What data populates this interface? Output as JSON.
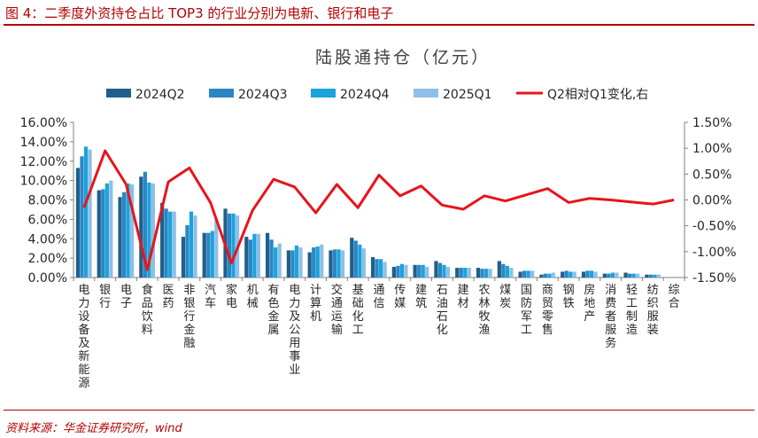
{
  "figure_title": "图 4：二季度外资持仓占比 TOP3 的行业分别为电新、银行和电子",
  "source": "资料来源：华金证券研究所，wind",
  "chart_data": {
    "type": "bar",
    "title": "陆股通持仓（亿元）",
    "categories": [
      "电力设备及新能源",
      "银行",
      "电子",
      "食品饮料",
      "医药",
      "非银行金融",
      "汽车",
      "家电",
      "机械",
      "有色金属",
      "电力及公用事业",
      "计算机",
      "交通运输",
      "基础化工",
      "通信",
      "传媒",
      "建筑",
      "石油石化",
      "建材",
      "农林牧渔",
      "煤炭",
      "国防军工",
      "商贸零售",
      "钢铁",
      "房地产",
      "消费者服务",
      "轻工制造",
      "纺织服装",
      "综合"
    ],
    "series": [
      {
        "name": "2024Q2",
        "color": "#1f5f8b",
        "values": [
          11.3,
          9.0,
          8.3,
          10.4,
          7.7,
          4.2,
          4.6,
          7.1,
          4.2,
          4.6,
          2.8,
          2.6,
          2.8,
          4.1,
          2.1,
          1.1,
          1.3,
          1.7,
          1.0,
          1.0,
          1.7,
          0.6,
          0.3,
          0.6,
          0.6,
          0.4,
          0.5,
          0.3,
          0.0
        ]
      },
      {
        "name": "2024Q3",
        "color": "#2b86c4",
        "values": [
          12.5,
          9.1,
          8.8,
          10.9,
          7.1,
          5.4,
          4.6,
          6.6,
          3.9,
          3.9,
          2.8,
          3.1,
          2.9,
          3.8,
          1.9,
          1.2,
          1.3,
          1.5,
          1.0,
          0.9,
          1.4,
          0.7,
          0.4,
          0.7,
          0.7,
          0.4,
          0.4,
          0.3,
          0.0
        ]
      },
      {
        "name": "2024Q4",
        "color": "#1aa3dc",
        "values": [
          13.5,
          9.7,
          9.7,
          9.8,
          6.8,
          6.8,
          4.8,
          6.6,
          4.5,
          3.1,
          3.3,
          3.2,
          2.9,
          3.4,
          1.9,
          1.4,
          1.3,
          1.3,
          1.0,
          0.9,
          1.2,
          0.7,
          0.4,
          0.6,
          0.7,
          0.5,
          0.4,
          0.3,
          0.0
        ]
      },
      {
        "name": "2025Q1",
        "color": "#8fbfe6",
        "values": [
          13.2,
          10.0,
          9.6,
          9.7,
          6.8,
          6.4,
          6.0,
          6.4,
          4.5,
          3.5,
          3.1,
          3.4,
          2.8,
          3.0,
          1.6,
          1.3,
          1.1,
          1.1,
          1.0,
          0.9,
          1.0,
          0.7,
          0.5,
          0.6,
          0.6,
          0.5,
          0.4,
          0.3,
          0.0
        ]
      }
    ],
    "line": {
      "name": "Q2相对Q1变化,右",
      "color": "#e8141b",
      "values": [
        -0.15,
        0.95,
        0.3,
        -1.35,
        0.35,
        0.62,
        -0.05,
        -1.22,
        -0.2,
        0.4,
        0.25,
        -0.25,
        0.3,
        -0.15,
        0.48,
        0.08,
        0.27,
        -0.1,
        -0.18,
        0.08,
        -0.02,
        0.1,
        0.22,
        -0.05,
        0.03,
        0.0,
        -0.04,
        -0.08,
        0.0
      ]
    },
    "y_left": {
      "min": 0,
      "max": 16,
      "step": 2,
      "format": "percent2"
    },
    "y_right": {
      "min": -1.5,
      "max": 1.5,
      "step": 0.5,
      "format": "percent2"
    },
    "y_left_ticks": [
      "0.00%",
      "2.00%",
      "4.00%",
      "6.00%",
      "8.00%",
      "10.00%",
      "12.00%",
      "14.00%",
      "16.00%"
    ],
    "y_right_ticks": [
      "-1.50%",
      "-1.00%",
      "-0.50%",
      "0.00%",
      "0.50%",
      "1.00%",
      "1.50%"
    ],
    "legend_position": "top",
    "grid": false
  }
}
